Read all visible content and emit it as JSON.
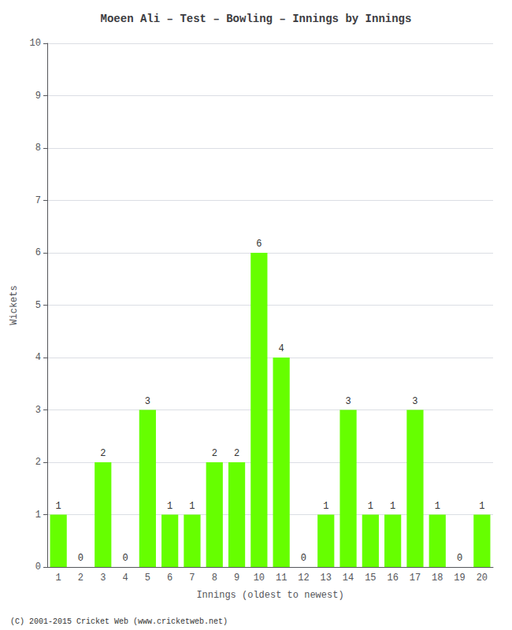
{
  "chart_data": {
    "type": "bar",
    "title": "Moeen Ali – Test – Bowling – Innings by Innings",
    "xlabel": "Innings (oldest to newest)",
    "ylabel": "Wickets",
    "categories": [
      "1",
      "2",
      "3",
      "4",
      "5",
      "6",
      "7",
      "8",
      "9",
      "10",
      "11",
      "12",
      "13",
      "14",
      "15",
      "16",
      "17",
      "18",
      "19",
      "20"
    ],
    "values": [
      1,
      0,
      2,
      0,
      3,
      1,
      1,
      2,
      2,
      6,
      4,
      0,
      1,
      3,
      1,
      1,
      3,
      1,
      0,
      1
    ],
    "color": "#66ff00",
    "ylim": [
      0,
      10
    ],
    "yticks": [
      0,
      1,
      2,
      3,
      4,
      5,
      6,
      7,
      8,
      9,
      10
    ],
    "grid": true,
    "data_labels": true,
    "annotations": [
      "(C) 2001-2015 Cricket Web (www.cricketweb.net)"
    ]
  }
}
